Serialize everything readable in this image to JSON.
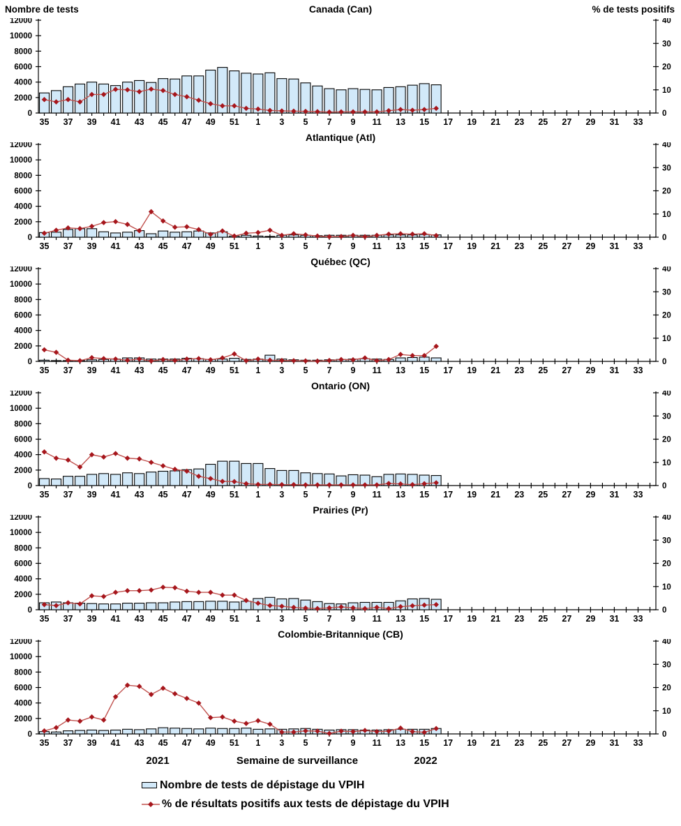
{
  "header": {
    "left_axis_label": "Nombre de tests",
    "right_axis_label": "% de tests positifs"
  },
  "footer": {
    "year_left": "2021",
    "x_axis_title": "Semaine de surveillance",
    "year_right": "2022"
  },
  "legend": {
    "tests_label": "Nombre de tests de dépistage du VPIH",
    "percent_label": "% de résultats positifs aux tests de dépistage du VPIH"
  },
  "colors": {
    "bar_fill": "#d2e9f9",
    "bar_border": "#000000",
    "line": "#c0504d",
    "marker": "#a6161c",
    "axis": "#000000"
  },
  "chart_data": {
    "type": "bar+line",
    "x_weeks": [
      35,
      36,
      37,
      38,
      39,
      40,
      41,
      42,
      43,
      44,
      45,
      46,
      47,
      48,
      49,
      50,
      51,
      52,
      1,
      2,
      3,
      4,
      5,
      6,
      7,
      8,
      9,
      10,
      11,
      12,
      13,
      14,
      15,
      16,
      17,
      18,
      19,
      20,
      21,
      22,
      23,
      24,
      25,
      26,
      27,
      28,
      29,
      30,
      31,
      32,
      33,
      34
    ],
    "weeks_with_data": 34,
    "left_axis": {
      "label": "Nombre de tests",
      "ylim": [
        0,
        12000
      ],
      "tick_step": 2000
    },
    "right_axis": {
      "label": "% de tests positifs",
      "ylim": [
        0,
        40
      ],
      "tick_step": 10
    },
    "panels": [
      {
        "title": "Canada (Can)",
        "tests": [
          2600,
          2900,
          3400,
          3750,
          4000,
          3750,
          3550,
          4000,
          4200,
          3950,
          4450,
          4400,
          4800,
          4800,
          5550,
          5900,
          5450,
          5150,
          5050,
          5200,
          4450,
          4400,
          3900,
          3500,
          3150,
          3000,
          3150,
          3050,
          3000,
          3300,
          3400,
          3600,
          3800,
          3650
        ],
        "percent_positive": [
          5.8,
          4.8,
          5.8,
          4.8,
          8,
          8,
          10.2,
          10,
          9.2,
          10.3,
          9.7,
          8,
          7,
          5.5,
          4,
          3.1,
          3.1,
          2,
          1.7,
          1.1,
          0.9,
          0.8,
          0.7,
          0.6,
          0.4,
          0.5,
          0.5,
          0.5,
          0.5,
          1,
          1.5,
          1.2,
          1.5,
          2
        ]
      },
      {
        "title": "Atlantique (Atl)",
        "tests": [
          600,
          650,
          1000,
          1100,
          1100,
          700,
          550,
          650,
          850,
          450,
          800,
          650,
          700,
          800,
          550,
          700,
          150,
          250,
          150,
          100,
          250,
          300,
          250,
          200,
          250,
          250,
          250,
          250,
          250,
          300,
          300,
          300,
          350,
          300
        ],
        "percent_positive": [
          1.7,
          3,
          4,
          3.7,
          4.7,
          6.3,
          6.7,
          5.5,
          2.8,
          11,
          7,
          4.3,
          4.5,
          3.3,
          1.2,
          2.7,
          0.5,
          1.7,
          2,
          3,
          0.8,
          1.5,
          1,
          0.5,
          0.2,
          0.3,
          0.8,
          0.2,
          0.8,
          1.3,
          1.5,
          1.3,
          1.5,
          0.7
        ]
      },
      {
        "title": "Québec (QC)",
        "tests": [
          150,
          100,
          100,
          100,
          200,
          250,
          300,
          450,
          450,
          300,
          300,
          300,
          400,
          350,
          250,
          300,
          400,
          250,
          300,
          800,
          300,
          200,
          150,
          150,
          200,
          250,
          300,
          350,
          300,
          250,
          450,
          500,
          550,
          450
        ],
        "percent_positive": [
          5,
          3.9,
          0.5,
          0.3,
          1.6,
          1.2,
          1,
          0.5,
          1,
          0.2,
          0.8,
          0.4,
          1,
          1.2,
          0.7,
          1.5,
          3.2,
          0.3,
          1,
          0.5,
          0.4,
          0.3,
          0.2,
          0.1,
          0.4,
          0.8,
          0.7,
          1.5,
          0.3,
          0.8,
          3,
          2.5,
          2.5,
          6.5
        ]
      },
      {
        "title": "Ontario (ON)",
        "tests": [
          900,
          850,
          1200,
          1200,
          1450,
          1550,
          1450,
          1650,
          1550,
          1750,
          1850,
          1900,
          2050,
          2150,
          2750,
          3150,
          3150,
          2850,
          2850,
          2200,
          1950,
          1950,
          1650,
          1550,
          1500,
          1250,
          1400,
          1350,
          1150,
          1450,
          1500,
          1450,
          1350,
          1300
        ],
        "percent_positive": [
          14.5,
          11.8,
          11,
          8,
          13.3,
          12.3,
          13.8,
          11.8,
          11.5,
          10,
          8.5,
          7,
          6.2,
          4,
          3,
          1.8,
          1.7,
          0.8,
          0.5,
          0.5,
          0.4,
          0.4,
          0.3,
          0.3,
          0.3,
          0.3,
          0.3,
          0.3,
          0.3,
          0.9,
          0.7,
          0.4,
          0.8,
          1.2
        ]
      },
      {
        "title": "Prairies (Pr)",
        "tests": [
          900,
          1000,
          900,
          850,
          800,
          750,
          750,
          850,
          850,
          900,
          900,
          1000,
          1050,
          1050,
          1100,
          1100,
          1000,
          1100,
          1450,
          1600,
          1400,
          1450,
          1250,
          1050,
          800,
          750,
          900,
          950,
          950,
          950,
          1150,
          1400,
          1450,
          1350
        ],
        "percent_positive": [
          2.2,
          1.8,
          3,
          2.5,
          6,
          5.7,
          7.5,
          8.2,
          8.2,
          8.5,
          9.7,
          9.5,
          8,
          7.5,
          7.5,
          6.3,
          6.3,
          4,
          2.8,
          1.8,
          1.5,
          1,
          0.7,
          0.5,
          0.8,
          1.2,
          0.8,
          0.5,
          1,
          0.5,
          1.3,
          1.7,
          2,
          2.2
        ]
      },
      {
        "title": "Colombie-Britannique (CB)",
        "tests": [
          300,
          250,
          400,
          450,
          500,
          450,
          500,
          600,
          550,
          650,
          800,
          750,
          700,
          650,
          750,
          700,
          700,
          750,
          600,
          650,
          600,
          650,
          700,
          600,
          500,
          550,
          550,
          500,
          500,
          550,
          600,
          600,
          600,
          700
        ],
        "percent_positive": [
          1.3,
          2.7,
          6,
          5.5,
          7.3,
          6,
          16,
          21,
          20.5,
          17,
          19.7,
          17.3,
          15.3,
          13.3,
          7,
          7.3,
          5.5,
          4.5,
          5.7,
          4.2,
          0.8,
          0.8,
          1.3,
          1.2,
          0.2,
          1.2,
          1,
          1.5,
          1,
          1.2,
          2.5,
          1,
          0.7,
          2.3
        ]
      }
    ]
  }
}
